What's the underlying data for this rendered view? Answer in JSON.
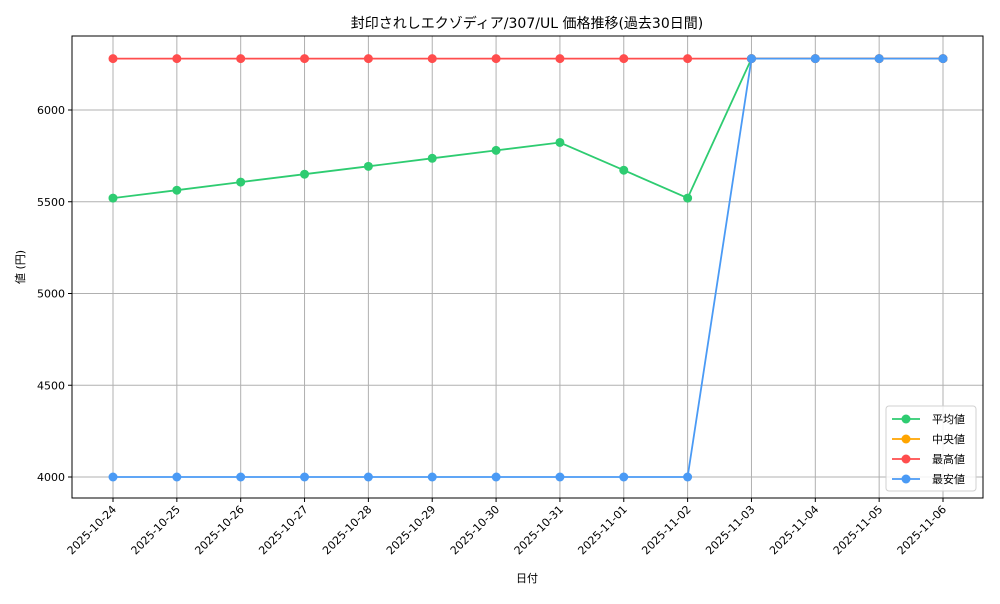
{
  "chart_data": {
    "type": "line",
    "title": "封印されしエクゾディア/307/UL 価格推移(過去30日間)",
    "xlabel": "日付",
    "ylabel": "値 (円)",
    "categories": [
      "2025-10-24",
      "2025-10-25",
      "2025-10-26",
      "2025-10-27",
      "2025-10-28",
      "2025-10-29",
      "2025-10-30",
      "2025-10-31",
      "2025-11-01",
      "2025-11-02",
      "2025-11-03",
      "2025-11-04",
      "2025-11-05",
      "2025-11-06"
    ],
    "yticks": [
      4000,
      4500,
      5000,
      5500,
      6000
    ],
    "ylim": [
      3890,
      6390
    ],
    "grid": true,
    "legend_position": "lower right",
    "series": [
      {
        "name": "平均値",
        "color": "#2ecc71",
        "values": [
          5520,
          5563,
          5607,
          5650,
          5693,
          5737,
          5780,
          5823,
          5672,
          5520,
          6280,
          6280,
          6280,
          6280
        ]
      },
      {
        "name": "中央値",
        "color": "#ffa500",
        "values": [
          null,
          null,
          null,
          null,
          null,
          null,
          null,
          null,
          null,
          null,
          6280,
          6280,
          6280,
          6280
        ]
      },
      {
        "name": "最高値",
        "color": "#ff4d4d",
        "values": [
          6280,
          6280,
          6280,
          6280,
          6280,
          6280,
          6280,
          6280,
          6280,
          6280,
          6280,
          6280,
          6280,
          6280
        ]
      },
      {
        "name": "最安値",
        "color": "#4a9af5",
        "values": [
          4000,
          4000,
          4000,
          4000,
          4000,
          4000,
          4000,
          4000,
          4000,
          4000,
          6280,
          6280,
          6280,
          6280
        ]
      }
    ]
  }
}
